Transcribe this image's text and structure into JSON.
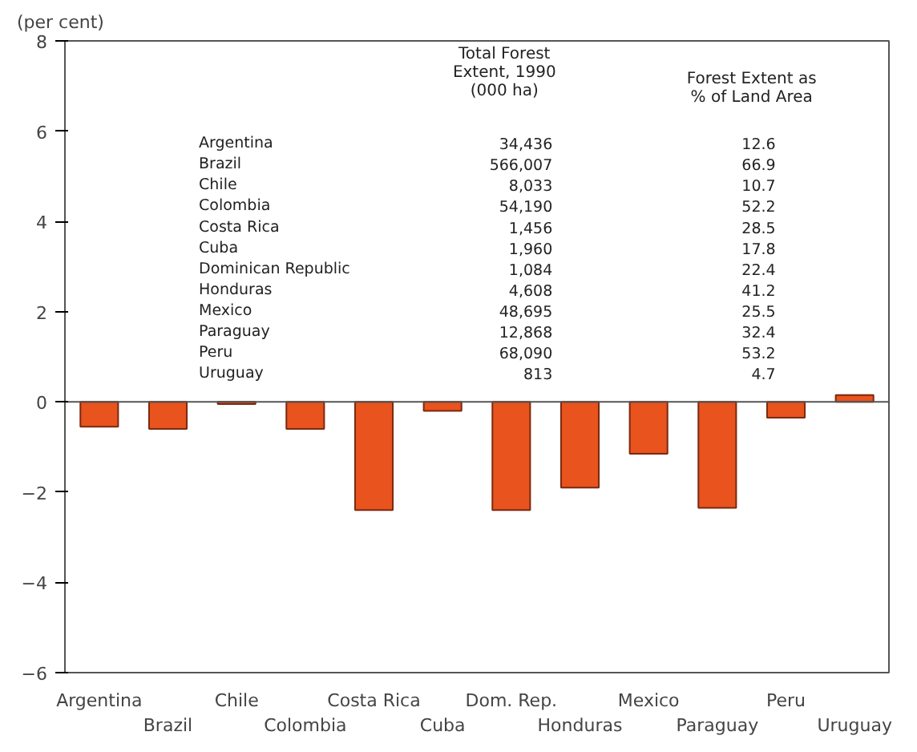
{
  "chart_data": {
    "type": "bar",
    "ylabel": "(per cent)",
    "categories": [
      "Argentina",
      "Brazil",
      "Chile",
      "Colombia",
      "Costa Rica",
      "Cuba",
      "Dom. Rep.",
      "Honduras",
      "Mexico",
      "Paraguay",
      "Peru",
      "Uruguay"
    ],
    "values": [
      -0.55,
      -0.6,
      -0.05,
      -0.6,
      -2.4,
      -0.2,
      -2.4,
      -1.9,
      -1.15,
      -2.35,
      -0.35,
      0.15
    ],
    "color": "#e8531e",
    "ylim": [
      -6,
      8
    ],
    "yticks": [
      -6,
      -4,
      -2,
      0,
      2,
      4,
      6,
      8
    ],
    "grid": false,
    "ref_lines": [
      {
        "axis": "y",
        "value": 0
      }
    ],
    "annotations": [
      "Total Forest\nExtent, 1990\n(000 ha)",
      "Forest Extent as\n% of Land Area",
      "Argentina",
      "34,436",
      "12.6",
      "Brazil",
      "566,007",
      "66.9",
      "Chile",
      "8,033",
      "10.7",
      "Colombia",
      "54,190",
      "52.2",
      "Costa Rica",
      "1,456",
      "28.5",
      "Cuba",
      "1,960",
      "17.8",
      "Dominican Republic",
      "1,084",
      "22.4",
      "Honduras",
      "4,608",
      "41.2",
      "Mexico",
      "48,695",
      "25.5",
      "Paraguay",
      "12,868",
      "32.4",
      "Peru",
      "68,090",
      "53.2",
      "Uruguay",
      "813",
      "4.7"
    ]
  }
}
